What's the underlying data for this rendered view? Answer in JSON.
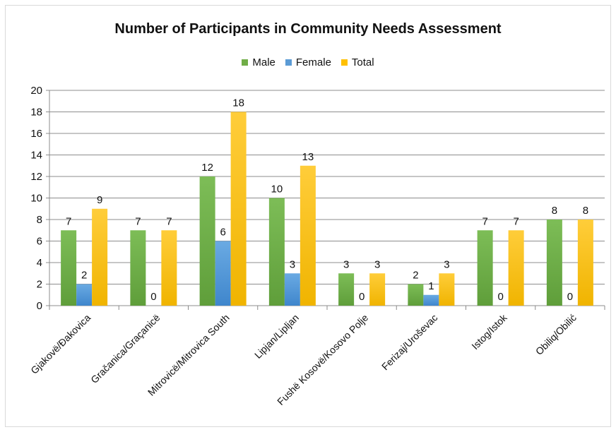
{
  "chart_data": {
    "type": "bar",
    "title": "Number of Participants  in Community Needs Assessment",
    "xlabel": "",
    "ylabel": "",
    "ylim": [
      0,
      20
    ],
    "yticks": [
      0,
      2,
      4,
      6,
      8,
      10,
      12,
      14,
      16,
      18,
      20
    ],
    "grid": true,
    "legend_position": "top",
    "categories": [
      "Gjakovë/Đakovica",
      "Gračanica/Graçanicë",
      "Mitrovicë/Mitrovica South",
      "Lipjan/Lipljan",
      "Fushë Kosovë/Kosovo Polje",
      "Ferizaj/Uroševac",
      "Istog/Istok",
      "Obiliq/Obilić"
    ],
    "series": [
      {
        "name": "Male",
        "color": "#70ad47",
        "values": [
          7,
          7,
          12,
          10,
          3,
          2,
          7,
          8
        ]
      },
      {
        "name": "Female",
        "color": "#5b9bd5",
        "values": [
          2,
          0,
          6,
          3,
          0,
          1,
          0,
          0
        ]
      },
      {
        "name": "Total",
        "color": "#ffc000",
        "values": [
          9,
          7,
          18,
          13,
          3,
          3,
          7,
          8
        ]
      }
    ]
  }
}
